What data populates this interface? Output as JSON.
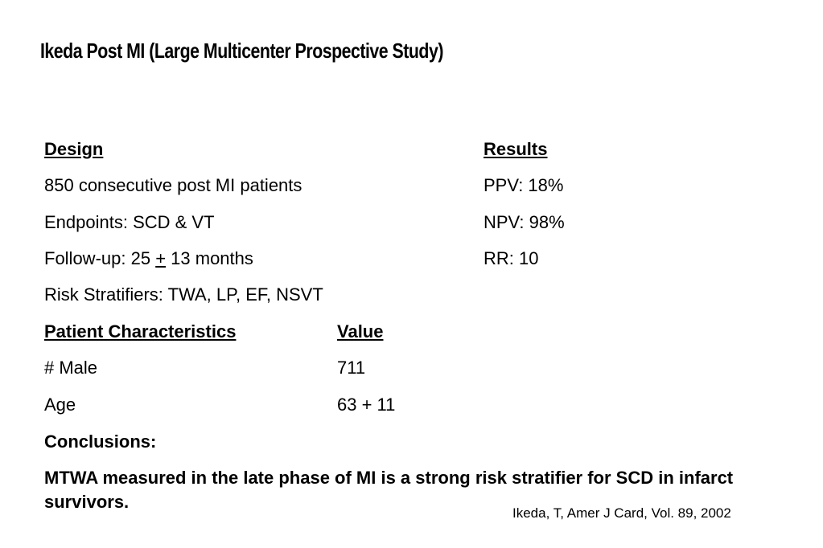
{
  "title": "Ikeda Post MI (Large Multicenter Prospective Study)",
  "design": {
    "heading": "Design ",
    "items": [
      "850 consecutive post MI patients",
      "Endpoints: SCD & VT",
      "Risk Stratifiers: TWA, LP, EF, NSVT"
    ],
    "followup": {
      "prefix": "Follow-up: 25 ",
      "plusminus": "+",
      "suffix": " 13 months"
    }
  },
  "results": {
    "heading": "Results",
    "items": [
      "PPV: 18%",
      "NPV: 98%",
      "RR: 10"
    ]
  },
  "patient_characteristics": {
    "heading": "Patient Characteristics",
    "value_heading": "Value",
    "rows": [
      {
        "label": "# Male",
        "value": "711"
      },
      {
        "label": "Age",
        "value": "63 + 11"
      }
    ]
  },
  "conclusions": {
    "heading": "Conclusions:",
    "text": "MTWA measured in the late phase of MI is a strong risk stratifier for SCD in infarct survivors."
  },
  "citation": "Ikeda, T, Amer J Card, Vol. 89, 2002"
}
